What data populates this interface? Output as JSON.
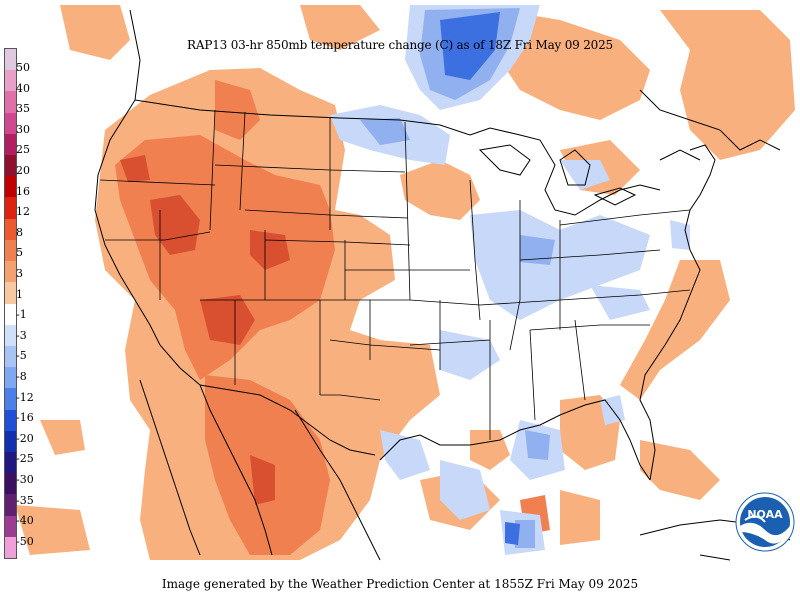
{
  "title": "RAP13 03-hr 850mb temperature change (C) as of 18Z Fri May 09 2025",
  "footer": "Image generated by the Weather Prediction Center at 1855Z Fri May 09 2025",
  "logo_text": "NOAA",
  "colorbar": {
    "labels": [
      "50",
      "40",
      "35",
      "30",
      "25",
      "20",
      "16",
      "12",
      "8",
      "5",
      "3",
      "1",
      "-1",
      "-3",
      "-5",
      "-8",
      "-12",
      "-16",
      "-20",
      "-25",
      "-30",
      "-35",
      "-40",
      "-50"
    ],
    "colors": [
      "#e0c8e0",
      "#e8a0c8",
      "#e070a8",
      "#d04890",
      "#b02060",
      "#901030",
      "#c00000",
      "#e02010",
      "#ee5a30",
      "#f08050",
      "#f4a070",
      "#f8c8a0",
      "#ffffff",
      "#d0e0f8",
      "#a8c4f4",
      "#7ea8f0",
      "#4a80e8",
      "#2050d8",
      "#1030b0",
      "#201880",
      "#3a1060",
      "#602070",
      "#9a3c90",
      "#f0a0d8"
    ]
  },
  "colors": {
    "warm_light": "#f8b07e",
    "warm_mid": "#f08050",
    "warm_dark": "#d85030",
    "cool_light": "#c8d8f8",
    "cool_mid": "#90b0f0",
    "cool_dark": "#3c70e0",
    "boundary": "#000000",
    "noaa_blue": "#1b5fb0"
  }
}
